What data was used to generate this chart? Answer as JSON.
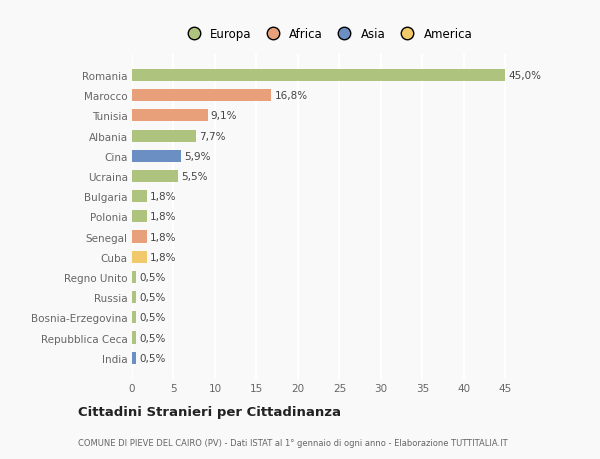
{
  "categories": [
    "India",
    "Repubblica Ceca",
    "Bosnia-Erzegovina",
    "Russia",
    "Regno Unito",
    "Cuba",
    "Senegal",
    "Polonia",
    "Bulgaria",
    "Ucraina",
    "Cina",
    "Albania",
    "Tunisia",
    "Marocco",
    "Romania"
  ],
  "values": [
    0.5,
    0.5,
    0.5,
    0.5,
    0.5,
    1.8,
    1.8,
    1.8,
    1.8,
    5.5,
    5.9,
    7.7,
    9.1,
    16.8,
    45.0
  ],
  "colors": [
    "#6b8fc2",
    "#aec47e",
    "#aec47e",
    "#aec47e",
    "#aec47e",
    "#f0c96b",
    "#e8a07a",
    "#aec47e",
    "#aec47e",
    "#aec47e",
    "#6b8fc2",
    "#aec47e",
    "#e8a07a",
    "#e8a07a",
    "#aec47e"
  ],
  "labels": [
    "0,5%",
    "0,5%",
    "0,5%",
    "0,5%",
    "0,5%",
    "1,8%",
    "1,8%",
    "1,8%",
    "1,8%",
    "5,5%",
    "5,9%",
    "7,7%",
    "9,1%",
    "16,8%",
    "45,0%"
  ],
  "legend_labels": [
    "Europa",
    "Africa",
    "Asia",
    "America"
  ],
  "legend_colors": [
    "#aec47e",
    "#e8a07a",
    "#6b8fc2",
    "#f0c96b"
  ],
  "title": "Cittadini Stranieri per Cittadinanza",
  "subtitle": "COMUNE DI PIEVE DEL CAIRO (PV) - Dati ISTAT al 1° gennaio di ogni anno - Elaborazione TUTTITALIA.IT",
  "xlim": [
    0,
    47
  ],
  "background_color": "#f9f9f9",
  "grid_color": "#ffffff",
  "bar_height": 0.6
}
